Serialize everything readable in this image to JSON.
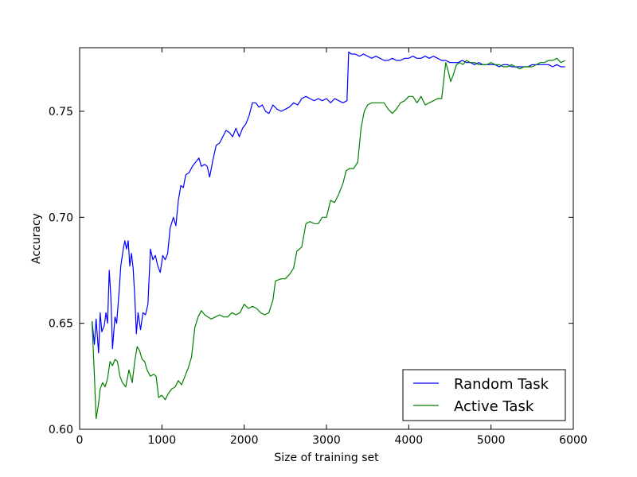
{
  "chart_data": {
    "type": "line",
    "title": "",
    "xlabel": "Size of training set",
    "ylabel": "Accuracy",
    "xlim": [
      0,
      6000
    ],
    "ylim": [
      0.6,
      0.78
    ],
    "x_ticks": [
      0,
      1000,
      2000,
      3000,
      4000,
      5000,
      6000
    ],
    "x_tick_labels": [
      "0",
      "1000",
      "2000",
      "3000",
      "4000",
      "5000",
      "6000"
    ],
    "y_ticks": [
      0.6,
      0.65,
      0.7,
      0.75
    ],
    "y_tick_labels": [
      "0.60",
      "0.65",
      "0.70",
      "0.75"
    ],
    "grid": false,
    "legend_position": "lower-right",
    "series": [
      {
        "name": "Random Task",
        "color": "#0000ff",
        "points": [
          [
            150,
            0.651
          ],
          [
            180,
            0.64
          ],
          [
            200,
            0.652
          ],
          [
            230,
            0.636
          ],
          [
            250,
            0.655
          ],
          [
            270,
            0.646
          ],
          [
            300,
            0.649
          ],
          [
            320,
            0.655
          ],
          [
            340,
            0.65
          ],
          [
            360,
            0.675
          ],
          [
            380,
            0.662
          ],
          [
            400,
            0.638
          ],
          [
            430,
            0.653
          ],
          [
            450,
            0.65
          ],
          [
            480,
            0.665
          ],
          [
            500,
            0.677
          ],
          [
            530,
            0.685
          ],
          [
            550,
            0.689
          ],
          [
            570,
            0.685
          ],
          [
            590,
            0.689
          ],
          [
            610,
            0.677
          ],
          [
            630,
            0.683
          ],
          [
            650,
            0.676
          ],
          [
            670,
            0.663
          ],
          [
            690,
            0.645
          ],
          [
            710,
            0.655
          ],
          [
            740,
            0.647
          ],
          [
            770,
            0.655
          ],
          [
            800,
            0.654
          ],
          [
            830,
            0.659
          ],
          [
            860,
            0.685
          ],
          [
            890,
            0.68
          ],
          [
            920,
            0.682
          ],
          [
            950,
            0.677
          ],
          [
            980,
            0.674
          ],
          [
            1010,
            0.682
          ],
          [
            1040,
            0.68
          ],
          [
            1070,
            0.683
          ],
          [
            1100,
            0.695
          ],
          [
            1140,
            0.7
          ],
          [
            1170,
            0.696
          ],
          [
            1200,
            0.708
          ],
          [
            1230,
            0.715
          ],
          [
            1260,
            0.714
          ],
          [
            1290,
            0.72
          ],
          [
            1330,
            0.721
          ],
          [
            1370,
            0.724
          ],
          [
            1410,
            0.726
          ],
          [
            1450,
            0.728
          ],
          [
            1480,
            0.724
          ],
          [
            1520,
            0.725
          ],
          [
            1550,
            0.724
          ],
          [
            1580,
            0.719
          ],
          [
            1620,
            0.727
          ],
          [
            1660,
            0.734
          ],
          [
            1700,
            0.735
          ],
          [
            1740,
            0.738
          ],
          [
            1780,
            0.741
          ],
          [
            1820,
            0.74
          ],
          [
            1860,
            0.738
          ],
          [
            1900,
            0.742
          ],
          [
            1940,
            0.738
          ],
          [
            1980,
            0.742
          ],
          [
            2020,
            0.744
          ],
          [
            2060,
            0.748
          ],
          [
            2100,
            0.754
          ],
          [
            2140,
            0.754
          ],
          [
            2180,
            0.752
          ],
          [
            2220,
            0.753
          ],
          [
            2260,
            0.75
          ],
          [
            2300,
            0.749
          ],
          [
            2350,
            0.753
          ],
          [
            2400,
            0.751
          ],
          [
            2450,
            0.75
          ],
          [
            2500,
            0.751
          ],
          [
            2550,
            0.752
          ],
          [
            2600,
            0.754
          ],
          [
            2650,
            0.753
          ],
          [
            2700,
            0.756
          ],
          [
            2750,
            0.757
          ],
          [
            2800,
            0.756
          ],
          [
            2850,
            0.755
          ],
          [
            2900,
            0.756
          ],
          [
            2950,
            0.755
          ],
          [
            3000,
            0.756
          ],
          [
            3050,
            0.754
          ],
          [
            3100,
            0.756
          ],
          [
            3150,
            0.755
          ],
          [
            3200,
            0.754
          ],
          [
            3250,
            0.755
          ],
          [
            3270,
            0.778
          ],
          [
            3300,
            0.777
          ],
          [
            3350,
            0.777
          ],
          [
            3400,
            0.776
          ],
          [
            3450,
            0.777
          ],
          [
            3500,
            0.776
          ],
          [
            3550,
            0.775
          ],
          [
            3600,
            0.776
          ],
          [
            3650,
            0.775
          ],
          [
            3700,
            0.774
          ],
          [
            3750,
            0.774
          ],
          [
            3800,
            0.775
          ],
          [
            3850,
            0.774
          ],
          [
            3900,
            0.774
          ],
          [
            3950,
            0.775
          ],
          [
            4000,
            0.775
          ],
          [
            4050,
            0.776
          ],
          [
            4100,
            0.775
          ],
          [
            4150,
            0.775
          ],
          [
            4200,
            0.776
          ],
          [
            4250,
            0.775
          ],
          [
            4300,
            0.776
          ],
          [
            4350,
            0.775
          ],
          [
            4400,
            0.774
          ],
          [
            4450,
            0.774
          ],
          [
            4500,
            0.773
          ],
          [
            4550,
            0.773
          ],
          [
            4600,
            0.773
          ],
          [
            4650,
            0.774
          ],
          [
            4700,
            0.773
          ],
          [
            4750,
            0.773
          ],
          [
            4800,
            0.772
          ],
          [
            4850,
            0.773
          ],
          [
            4900,
            0.772
          ],
          [
            4950,
            0.772
          ],
          [
            5000,
            0.772
          ],
          [
            5050,
            0.772
          ],
          [
            5100,
            0.771
          ],
          [
            5150,
            0.772
          ],
          [
            5200,
            0.772
          ],
          [
            5250,
            0.771
          ],
          [
            5300,
            0.771
          ],
          [
            5350,
            0.771
          ],
          [
            5400,
            0.771
          ],
          [
            5450,
            0.771
          ],
          [
            5500,
            0.772
          ],
          [
            5550,
            0.772
          ],
          [
            5600,
            0.772
          ],
          [
            5650,
            0.772
          ],
          [
            5700,
            0.772
          ],
          [
            5750,
            0.771
          ],
          [
            5800,
            0.772
          ],
          [
            5850,
            0.771
          ],
          [
            5900,
            0.771
          ]
        ]
      },
      {
        "name": "Active Task",
        "color": "#008000",
        "points": [
          [
            150,
            0.651
          ],
          [
            180,
            0.625
          ],
          [
            200,
            0.605
          ],
          [
            230,
            0.612
          ],
          [
            250,
            0.619
          ],
          [
            280,
            0.622
          ],
          [
            310,
            0.62
          ],
          [
            340,
            0.624
          ],
          [
            370,
            0.632
          ],
          [
            400,
            0.63
          ],
          [
            430,
            0.633
          ],
          [
            460,
            0.632
          ],
          [
            490,
            0.625
          ],
          [
            520,
            0.622
          ],
          [
            560,
            0.62
          ],
          [
            600,
            0.628
          ],
          [
            640,
            0.622
          ],
          [
            670,
            0.632
          ],
          [
            700,
            0.639
          ],
          [
            730,
            0.637
          ],
          [
            760,
            0.633
          ],
          [
            790,
            0.632
          ],
          [
            820,
            0.628
          ],
          [
            860,
            0.625
          ],
          [
            900,
            0.626
          ],
          [
            930,
            0.625
          ],
          [
            960,
            0.615
          ],
          [
            1000,
            0.616
          ],
          [
            1040,
            0.614
          ],
          [
            1080,
            0.617
          ],
          [
            1120,
            0.619
          ],
          [
            1160,
            0.62
          ],
          [
            1200,
            0.623
          ],
          [
            1240,
            0.621
          ],
          [
            1280,
            0.625
          ],
          [
            1320,
            0.629
          ],
          [
            1360,
            0.634
          ],
          [
            1400,
            0.648
          ],
          [
            1440,
            0.653
          ],
          [
            1480,
            0.656
          ],
          [
            1520,
            0.654
          ],
          [
            1560,
            0.653
          ],
          [
            1600,
            0.652
          ],
          [
            1650,
            0.653
          ],
          [
            1700,
            0.654
          ],
          [
            1750,
            0.653
          ],
          [
            1800,
            0.653
          ],
          [
            1850,
            0.655
          ],
          [
            1900,
            0.654
          ],
          [
            1950,
            0.655
          ],
          [
            2000,
            0.659
          ],
          [
            2050,
            0.657
          ],
          [
            2100,
            0.658
          ],
          [
            2150,
            0.657
          ],
          [
            2200,
            0.655
          ],
          [
            2250,
            0.654
          ],
          [
            2300,
            0.655
          ],
          [
            2350,
            0.661
          ],
          [
            2380,
            0.67
          ],
          [
            2450,
            0.671
          ],
          [
            2500,
            0.671
          ],
          [
            2550,
            0.673
          ],
          [
            2600,
            0.676
          ],
          [
            2640,
            0.684
          ],
          [
            2700,
            0.686
          ],
          [
            2750,
            0.697
          ],
          [
            2800,
            0.698
          ],
          [
            2850,
            0.697
          ],
          [
            2900,
            0.697
          ],
          [
            2950,
            0.7
          ],
          [
            3000,
            0.7
          ],
          [
            3050,
            0.708
          ],
          [
            3100,
            0.707
          ],
          [
            3150,
            0.711
          ],
          [
            3200,
            0.716
          ],
          [
            3240,
            0.722
          ],
          [
            3280,
            0.723
          ],
          [
            3330,
            0.723
          ],
          [
            3380,
            0.726
          ],
          [
            3420,
            0.742
          ],
          [
            3460,
            0.75
          ],
          [
            3500,
            0.753
          ],
          [
            3550,
            0.754
          ],
          [
            3600,
            0.754
          ],
          [
            3650,
            0.754
          ],
          [
            3700,
            0.754
          ],
          [
            3750,
            0.751
          ],
          [
            3800,
            0.749
          ],
          [
            3850,
            0.751
          ],
          [
            3900,
            0.754
          ],
          [
            3950,
            0.755
          ],
          [
            4000,
            0.757
          ],
          [
            4050,
            0.757
          ],
          [
            4100,
            0.754
          ],
          [
            4150,
            0.757
          ],
          [
            4200,
            0.753
          ],
          [
            4250,
            0.754
          ],
          [
            4300,
            0.755
          ],
          [
            4350,
            0.756
          ],
          [
            4400,
            0.756
          ],
          [
            4450,
            0.773
          ],
          [
            4480,
            0.769
          ],
          [
            4510,
            0.764
          ],
          [
            4540,
            0.767
          ],
          [
            4580,
            0.772
          ],
          [
            4620,
            0.773
          ],
          [
            4660,
            0.772
          ],
          [
            4700,
            0.774
          ],
          [
            4750,
            0.773
          ],
          [
            4800,
            0.773
          ],
          [
            4850,
            0.772
          ],
          [
            4900,
            0.772
          ],
          [
            4950,
            0.772
          ],
          [
            5000,
            0.773
          ],
          [
            5050,
            0.772
          ],
          [
            5100,
            0.772
          ],
          [
            5150,
            0.771
          ],
          [
            5200,
            0.771
          ],
          [
            5250,
            0.772
          ],
          [
            5300,
            0.771
          ],
          [
            5350,
            0.77
          ],
          [
            5400,
            0.771
          ],
          [
            5450,
            0.771
          ],
          [
            5500,
            0.771
          ],
          [
            5550,
            0.772
          ],
          [
            5600,
            0.773
          ],
          [
            5650,
            0.773
          ],
          [
            5700,
            0.774
          ],
          [
            5750,
            0.774
          ],
          [
            5800,
            0.775
          ],
          [
            5850,
            0.773
          ],
          [
            5900,
            0.774
          ]
        ]
      }
    ]
  }
}
